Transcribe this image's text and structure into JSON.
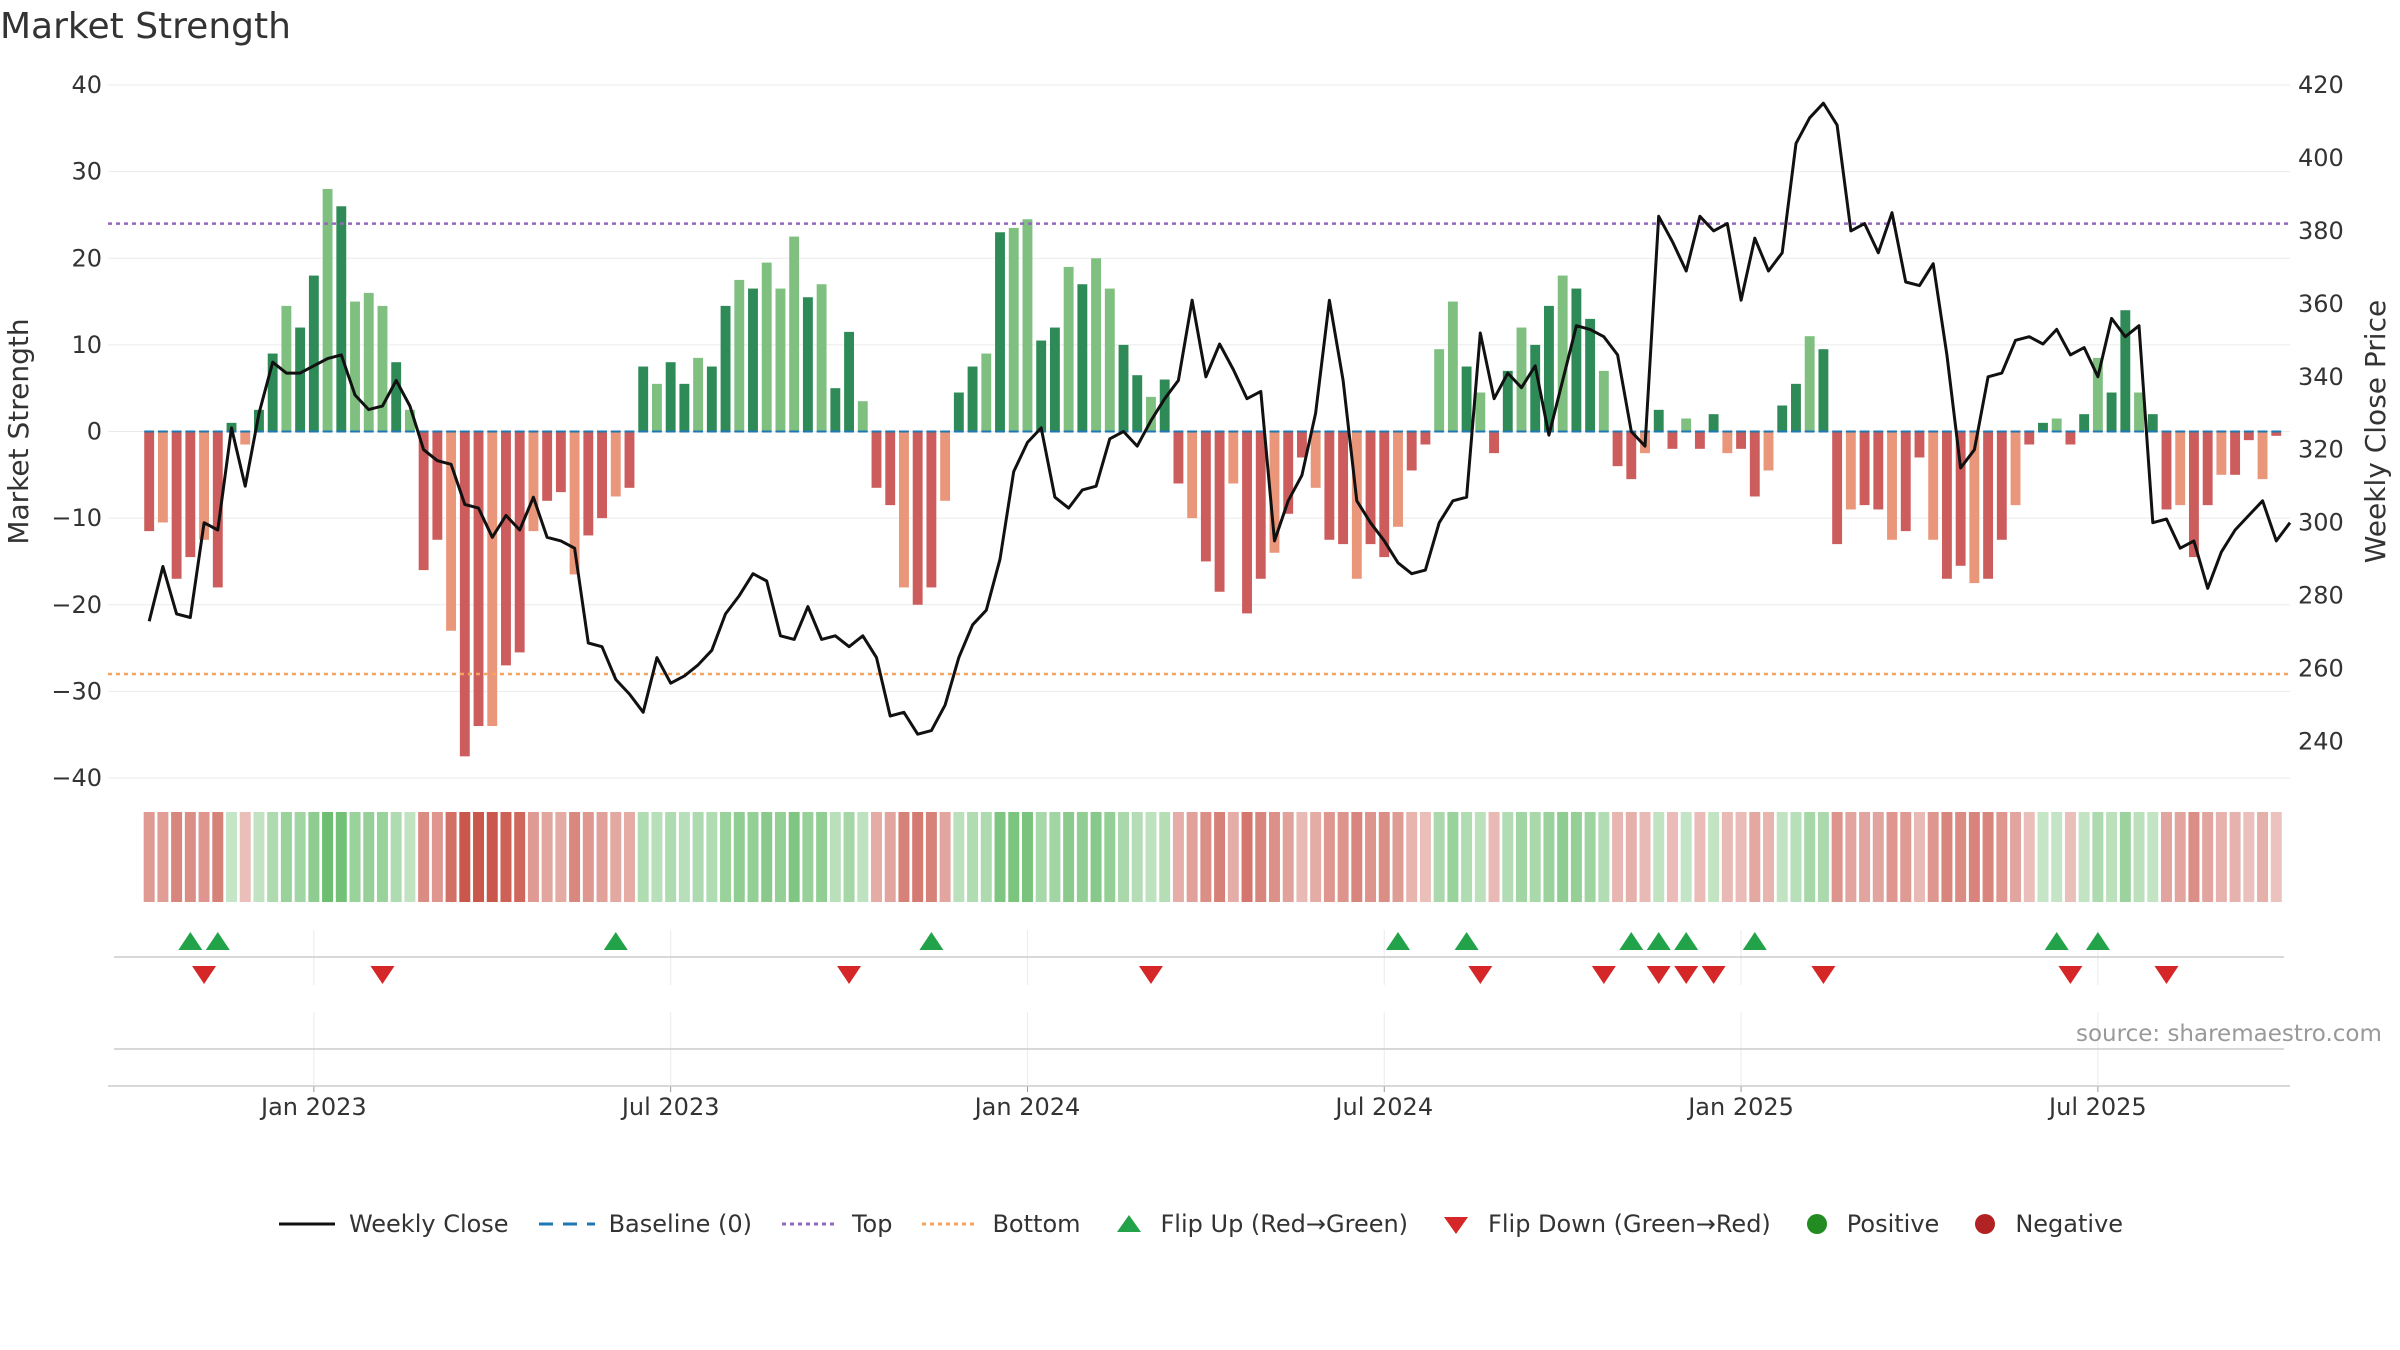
{
  "chart_data": {
    "type": "bar",
    "title": "Market Strength",
    "source_label": "source: sharemaestro.com",
    "left_axis_label": "Market Strength",
    "right_axis_label": "Weekly Close Price",
    "left_ylim": [
      -40,
      40
    ],
    "right_ylim": [
      230,
      420
    ],
    "left_ticks": [
      40,
      30,
      20,
      10,
      0,
      -10,
      -20,
      -30,
      -40
    ],
    "left_tick_labels": [
      "40",
      "30",
      "20",
      "10",
      "0",
      "−10",
      "−20",
      "−30",
      "−40"
    ],
    "right_ticks": [
      420,
      400,
      380,
      360,
      340,
      320,
      300,
      280,
      260,
      240
    ],
    "right_tick_labels": [
      "420",
      "400",
      "380",
      "360",
      "340",
      "320",
      "300",
      "280",
      "260",
      "240"
    ],
    "x_week_range": [
      -3,
      156
    ],
    "x_tick_weeks": [
      12,
      38,
      64,
      90,
      116,
      142
    ],
    "x_tick_labels": [
      "Jan 2023",
      "Jul 2023",
      "Jan 2024",
      "Jul 2024",
      "Jan 2025",
      "Jul 2025"
    ],
    "top_level": 24,
    "bottom_level": -28,
    "colors": {
      "strong_green": "#2e8b57",
      "light_green": "#7fbf7f",
      "strong_red": "#cd5c5c",
      "light_red": "#e9967a",
      "price_line": "#111111",
      "baseline": "#1f77b4",
      "top": "#9467bd",
      "bottom": "#f4a460",
      "flip_up": "#23a349",
      "flip_down": "#d62728",
      "positive": "#228b22",
      "negative": "#b22222"
    },
    "strength": [
      -11.5,
      -10.5,
      -17,
      -14.5,
      -12.5,
      -18,
      1,
      -1.5,
      2.5,
      9,
      14.5,
      12,
      18,
      28,
      26,
      15,
      16,
      14.5,
      8,
      2.5,
      -16,
      -12.5,
      -23,
      -37.5,
      -34,
      -34,
      -27,
      -25.5,
      -11.5,
      -8,
      -7,
      -16.5,
      -12,
      -10,
      -7.5,
      -6.5,
      7.5,
      5.5,
      8,
      5.5,
      8.5,
      7.5,
      14.5,
      17.5,
      16.5,
      19.5,
      16.5,
      22.5,
      15.5,
      17,
      5,
      11.5,
      3.5,
      -6.5,
      -8.5,
      -18,
      -20,
      -18,
      -8,
      4.5,
      7.5,
      9,
      23,
      23.5,
      24.5,
      10.5,
      12,
      19,
      17,
      20,
      16.5,
      10,
      6.5,
      4,
      6,
      -6,
      -10,
      -15,
      -18.5,
      -6,
      -21,
      -17,
      -14,
      -9.5,
      -3,
      -6.5,
      -12.5,
      -13,
      -17,
      -13,
      -14.5,
      -11,
      -4.5,
      -1.5,
      9.5,
      15,
      7.5,
      4.5,
      -2.5,
      7,
      12,
      10,
      14.5,
      18,
      16.5,
      13,
      7,
      -4,
      -5.5,
      -2.5,
      2.5,
      -2,
      1.5,
      -2,
      2,
      -2.5,
      -2,
      -7.5,
      -4.5,
      3,
      5.5,
      11,
      9.5,
      -13,
      -9,
      -8.5,
      -9,
      -12.5,
      -11.5,
      -3,
      -12.5,
      -17,
      -15.5,
      -17.5,
      -17,
      -12.5,
      -8.5,
      -1.5,
      1,
      1.5,
      -1.5,
      2,
      8.5,
      4.5,
      14,
      4.5,
      2,
      -9,
      -8.5,
      -14.5,
      -8.5,
      -5,
      -5,
      -1,
      -5.5,
      -0.5
    ],
    "weekly_close": [
      273,
      288,
      275,
      274,
      300,
      298,
      326,
      310,
      330,
      344,
      341,
      341,
      343,
      345,
      346,
      335,
      331,
      332,
      339,
      332,
      320,
      317,
      316,
      305,
      304,
      296,
      302,
      298,
      307,
      296,
      295,
      293,
      267,
      266,
      257,
      253,
      248,
      263,
      256,
      258,
      261,
      265,
      275,
      280,
      286,
      284,
      269,
      268,
      277,
      268,
      269,
      266,
      269,
      263,
      247,
      248,
      242,
      243,
      250,
      263,
      272,
      276,
      290,
      314,
      322,
      326,
      307,
      304,
      309,
      310,
      323,
      325,
      321,
      328,
      334,
      339,
      361,
      340,
      349,
      342,
      334,
      336,
      295,
      306,
      313,
      330,
      361,
      339,
      306,
      300,
      295,
      289,
      286,
      287,
      300,
      306,
      307,
      352,
      334,
      341,
      337,
      343,
      324,
      339,
      354,
      353,
      351,
      346,
      325,
      321,
      384,
      377,
      369,
      384,
      380,
      382,
      361,
      378,
      369,
      374,
      404,
      411,
      415,
      409,
      380,
      382,
      374,
      385,
      366,
      365,
      371,
      346,
      315,
      320,
      340,
      341,
      350,
      351,
      349,
      353,
      346,
      348,
      340,
      356,
      351,
      354,
      300,
      301,
      293,
      295,
      282,
      292,
      298,
      302,
      306,
      295,
      300
    ],
    "flip_up_weeks": [
      3,
      5,
      34,
      57,
      91,
      96,
      108,
      110,
      112,
      117,
      139,
      142
    ],
    "flip_down_weeks": [
      4,
      17,
      51,
      73,
      97,
      106,
      110,
      112,
      114,
      122,
      140,
      147
    ]
  },
  "legend": {
    "weekly_close": "Weekly Close",
    "baseline": "Baseline (0)",
    "top": "Top",
    "bottom": "Bottom",
    "flip_up": "Flip Up (Red→Green)",
    "flip_down": "Flip Down (Green→Red)",
    "positive": "Positive",
    "negative": "Negative"
  }
}
